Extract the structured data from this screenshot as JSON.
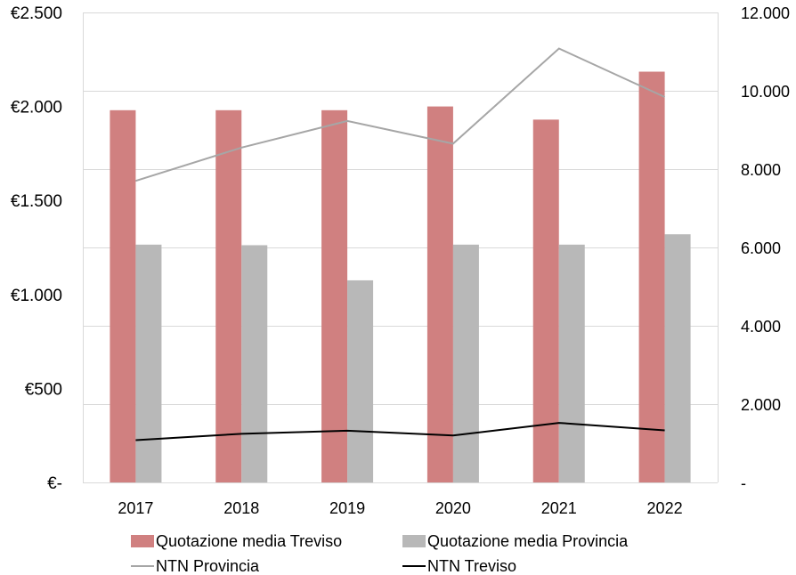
{
  "chart_data": {
    "type": "bar",
    "categories": [
      "2017",
      "2018",
      "2019",
      "2020",
      "2021",
      "2022"
    ],
    "series": [
      {
        "name": "Quotazione media Treviso",
        "kind": "bar",
        "axis": "left",
        "color": "#d08080",
        "values": [
          1980,
          1980,
          1980,
          2000,
          1930,
          2185
        ]
      },
      {
        "name": "Quotazione media Provincia",
        "kind": "bar",
        "axis": "left",
        "color": "#b8b8b8",
        "values": [
          1265,
          1262,
          1075,
          1265,
          1265,
          1320
        ]
      },
      {
        "name": "NTN Provincia",
        "kind": "line",
        "axis": "right",
        "color": "#a6a6a6",
        "values": [
          7700,
          8550,
          9230,
          8650,
          11080,
          9840
        ]
      },
      {
        "name": "NTN Treviso",
        "kind": "line",
        "axis": "right",
        "color": "#000000",
        "values": [
          1080,
          1240,
          1320,
          1200,
          1520,
          1330
        ]
      }
    ],
    "y_left": {
      "ylim": [
        0,
        2500
      ],
      "ticks": [
        0,
        500,
        1000,
        1500,
        2000,
        2500
      ],
      "tick_labels": [
        "€-",
        "€500",
        "€1.000",
        "€1.500",
        "€2.000",
        "€2.500"
      ]
    },
    "y_right": {
      "ylim": [
        0,
        12000
      ],
      "ticks": [
        0,
        2000,
        4000,
        6000,
        8000,
        10000,
        12000
      ],
      "tick_labels": [
        "-",
        "2.000",
        "4.000",
        "6.000",
        "8.000",
        "10.000",
        "12.000"
      ]
    },
    "title": "",
    "xlabel": "",
    "ylabel": "",
    "grid": true,
    "legend_position": "bottom"
  }
}
